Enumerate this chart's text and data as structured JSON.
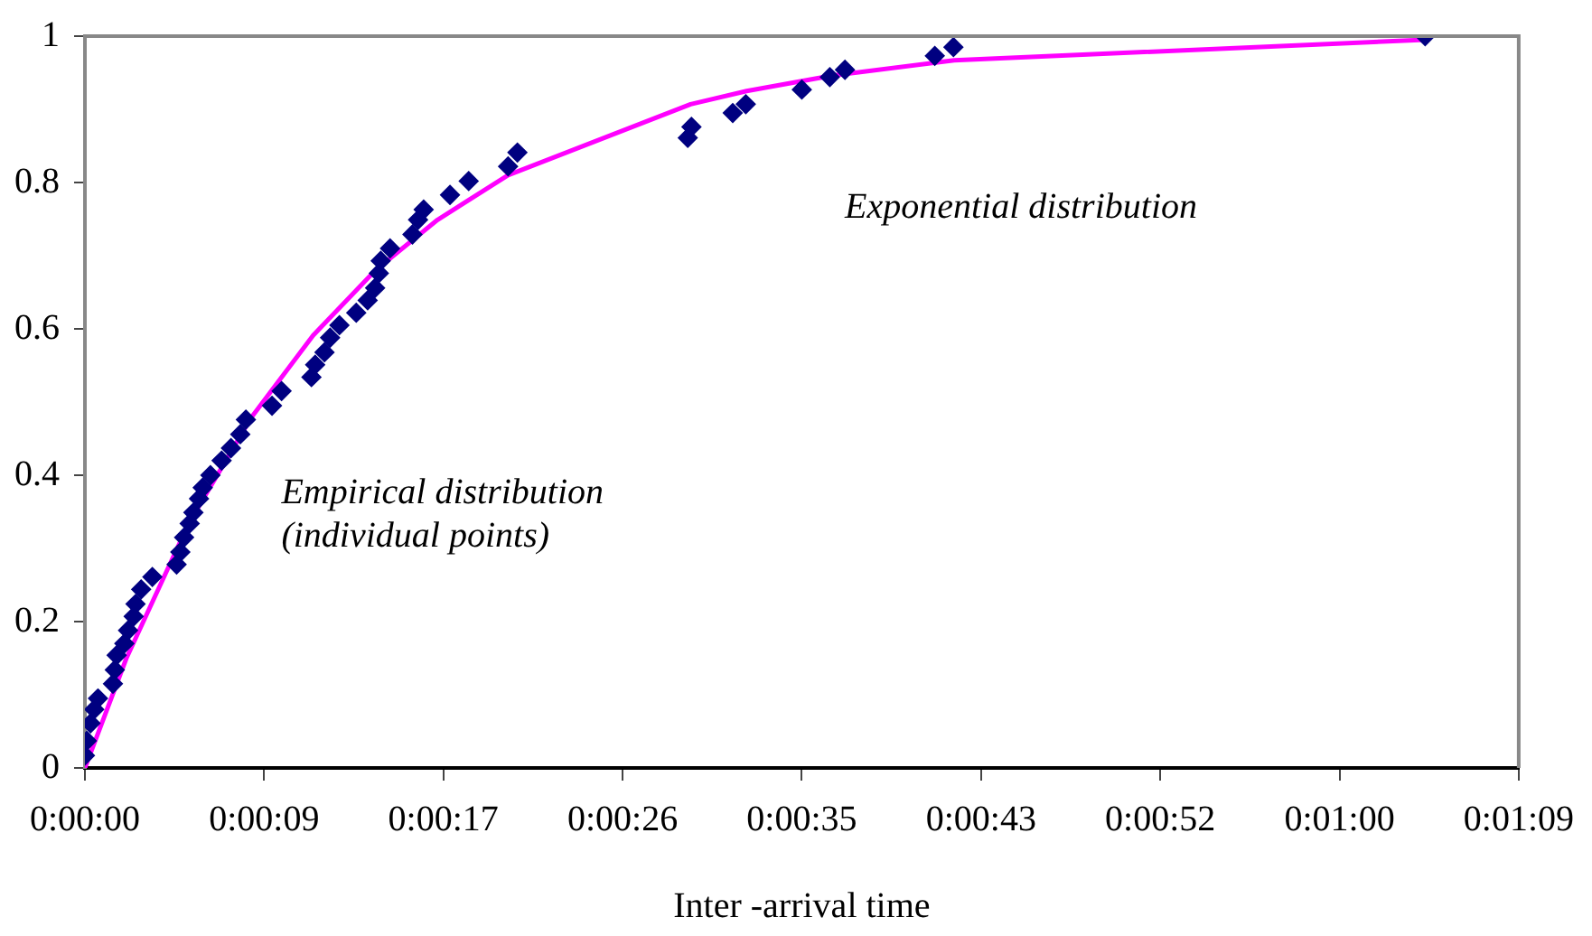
{
  "chart_data": {
    "type": "scatter",
    "xlabel": "Inter -arrival time",
    "xlim": [
      0,
      69.12
    ],
    "xticks": [
      {
        "value": 0,
        "label": "0:00:00"
      },
      {
        "value": 8.64,
        "label": "0:00:09"
      },
      {
        "value": 17.28,
        "label": "0:00:17"
      },
      {
        "value": 25.92,
        "label": "0:00:26"
      },
      {
        "value": 34.56,
        "label": "0:00:35"
      },
      {
        "value": 43.2,
        "label": "0:00:43"
      },
      {
        "value": 51.84,
        "label": "0:00:52"
      },
      {
        "value": 60.48,
        "label": "0:01:00"
      },
      {
        "value": 69.12,
        "label": "0:01:09"
      }
    ],
    "ylim": [
      0,
      1
    ],
    "yticks": [
      0,
      0.2,
      0.4,
      0.6,
      0.8,
      1
    ],
    "grid": false,
    "legend": false,
    "series": [
      {
        "type": "line",
        "color": "#ff00ff",
        "marker": "none",
        "line_style": "solid",
        "x": [
          0,
          2,
          5,
          8,
          11,
          14,
          17,
          20.4,
          29.2,
          31.9,
          36,
          41.9,
          64.6
        ],
        "values": [
          0,
          0.15,
          0.334,
          0.478,
          0.591,
          0.68,
          0.749,
          0.81,
          0.907,
          0.925,
          0.946,
          0.967,
          0.995
        ]
      },
      {
        "color": "#000080",
        "marker": "diamond",
        "x": [
          0,
          0.09,
          0.27,
          0.45,
          0.63,
          1.35,
          1.44,
          1.53,
          1.9,
          2.08,
          2.35,
          2.44,
          2.71,
          3.25,
          4.42,
          4.6,
          4.78,
          5.05,
          5.23,
          5.5,
          5.68,
          6.05,
          6.59,
          7.04,
          7.49,
          7.76,
          9.02,
          9.48,
          10.92,
          11.1,
          11.55,
          11.82,
          12.27,
          13.08,
          13.63,
          13.99,
          14.17,
          14.26,
          14.71,
          15.79,
          16.06,
          16.33,
          17.6,
          18.5,
          20.4,
          20.85,
          29.06,
          29.24,
          31.23,
          31.86,
          34.56,
          35.91,
          36.64,
          40.97,
          41.87,
          64.61
        ],
        "values": [
          0.017,
          0.037,
          0.061,
          0.08,
          0.095,
          0.115,
          0.134,
          0.154,
          0.17,
          0.188,
          0.207,
          0.224,
          0.244,
          0.261,
          0.278,
          0.295,
          0.315,
          0.334,
          0.349,
          0.368,
          0.383,
          0.4,
          0.42,
          0.437,
          0.456,
          0.476,
          0.495,
          0.515,
          0.534,
          0.551,
          0.568,
          0.588,
          0.605,
          0.622,
          0.639,
          0.656,
          0.676,
          0.693,
          0.71,
          0.729,
          0.749,
          0.763,
          0.783,
          0.802,
          0.822,
          0.841,
          0.861,
          0.876,
          0.895,
          0.907,
          0.927,
          0.944,
          0.954,
          0.973,
          0.985,
          1.0
        ]
      }
    ],
    "annotations": [
      "Empirical distribution\n(individual points)",
      "Exponential distribution"
    ]
  }
}
